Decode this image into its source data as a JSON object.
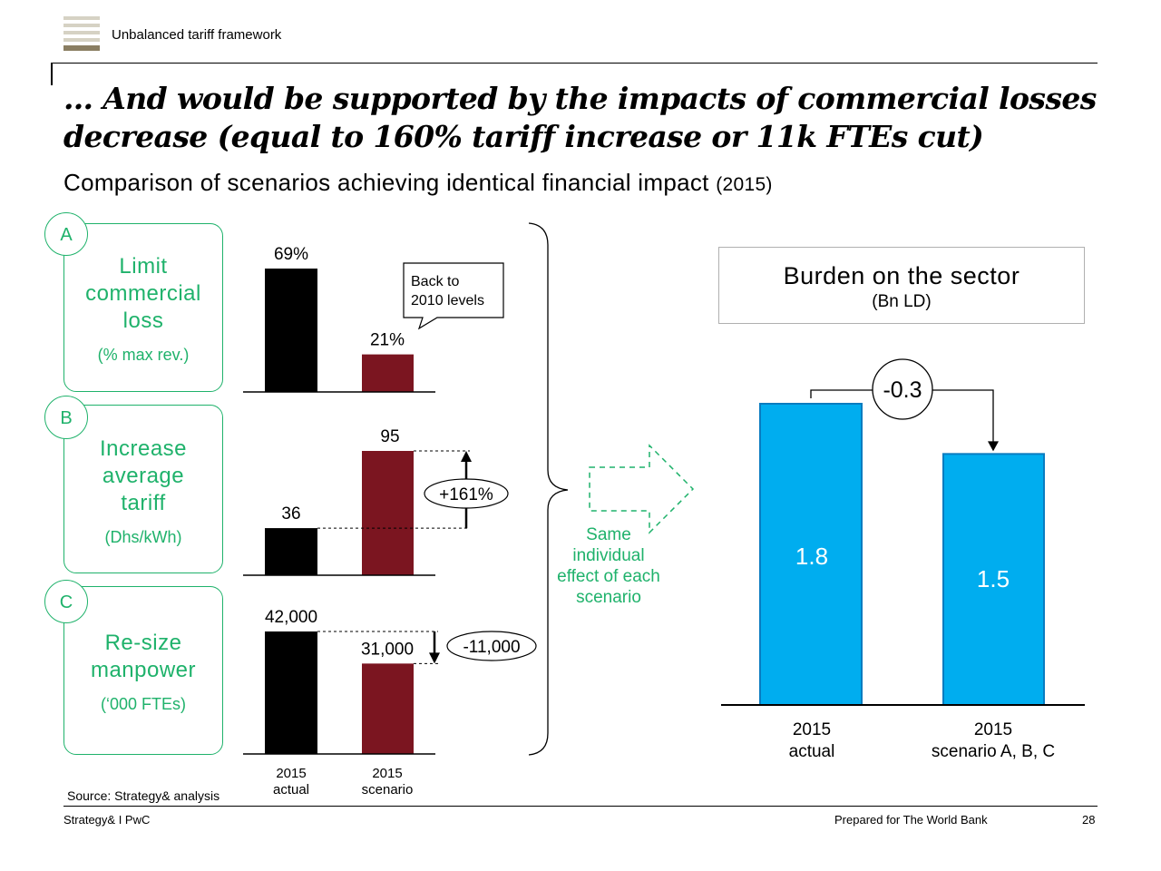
{
  "header": {
    "section_label": "Unbalanced tariff framework"
  },
  "title": "… And would be supported by the impacts of commercial losses decrease (equal to 160% tariff increase or 11k FTEs cut)",
  "subtitle": {
    "text": "Comparison of scenarios achieving identical financial impact",
    "year": "(2015)"
  },
  "scenarios": [
    {
      "letter": "A",
      "name_lines": [
        "Limit",
        "commercial",
        "loss"
      ],
      "unit": "(% max rev.)"
    },
    {
      "letter": "B",
      "name_lines": [
        "Increase",
        "average",
        "tariff"
      ],
      "unit": "(Dhs/kWh)"
    },
    {
      "letter": "C",
      "name_lines": [
        "Re-size",
        "manpower"
      ],
      "unit": "(‘000 FTEs)"
    }
  ],
  "colors": {
    "actual": "#000000",
    "scenario": "#7b1520",
    "accent_green": "#1fb26b",
    "burden_bar": "#00adef"
  },
  "chart_data": [
    {
      "type": "bar",
      "categories": [
        "2015 actual",
        "2015 scenario"
      ],
      "values": [
        69,
        21
      ],
      "labels": [
        "69%",
        "21%"
      ],
      "callout": [
        "Back to",
        "2010 levels"
      ]
    },
    {
      "type": "bar",
      "categories": [
        "2015 actual",
        "2015 scenario"
      ],
      "values": [
        36,
        95
      ],
      "labels": [
        "36",
        "95"
      ],
      "delta_label": "+161%"
    },
    {
      "type": "bar",
      "categories": [
        "2015 actual",
        "2015 scenario"
      ],
      "values": [
        42000,
        31000
      ],
      "labels": [
        "42,000",
        "31,000"
      ],
      "delta_label": "-11,000"
    },
    {
      "type": "bar",
      "title": "Burden on the sector",
      "unit": "(Bn LD)",
      "categories": [
        [
          "2015",
          "actual"
        ],
        [
          "2015",
          "scenario A, B, C"
        ]
      ],
      "values": [
        1.8,
        1.5
      ],
      "labels": [
        "1.8",
        "1.5"
      ],
      "delta_label": "-0.3"
    }
  ],
  "small_axis_labels": [
    [
      "2015",
      "actual"
    ],
    [
      "2015",
      "scenario"
    ]
  ],
  "arrow_note": [
    "Same",
    "individual",
    "effect of each",
    "scenario"
  ],
  "source": "Source: Strategy& analysis",
  "footer": {
    "left": "Strategy& I PwC",
    "center": "Prepared for The World Bank",
    "page": "28"
  }
}
